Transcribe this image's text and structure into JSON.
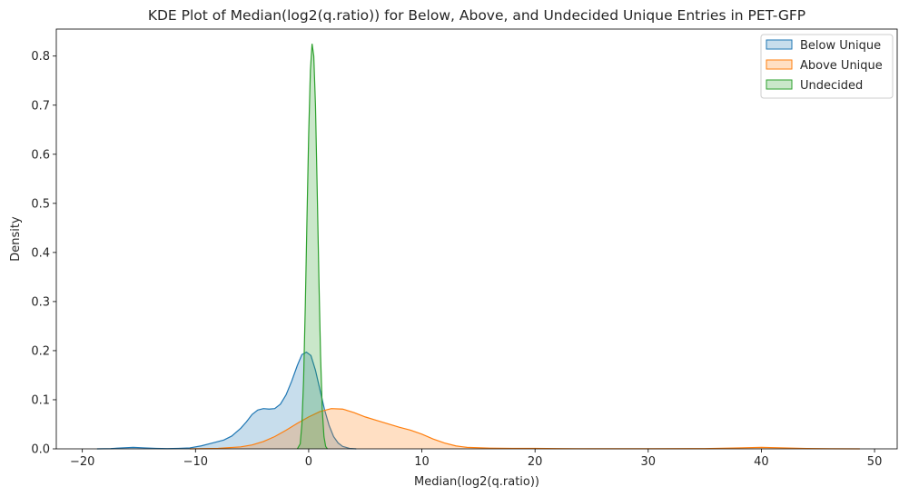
{
  "chart_data": {
    "type": "area",
    "title": "KDE Plot of Median(log2(q.ratio)) for Below, Above, and Undecided Unique Entries in PET-GFP",
    "xlabel": "Median(log2(q.ratio))",
    "ylabel": "Density",
    "xlim": [
      -22.3,
      52.0
    ],
    "ylim": [
      0,
      0.855
    ],
    "x_ticks": [
      -20,
      -10,
      0,
      10,
      20,
      30,
      40,
      50
    ],
    "y_ticks": [
      0.0,
      0.1,
      0.2,
      0.3,
      0.4,
      0.5,
      0.6,
      0.7,
      0.8
    ],
    "x_tick_labels": [
      "−20",
      "−10",
      "0",
      "10",
      "20",
      "30",
      "40",
      "50"
    ],
    "y_tick_labels": [
      "0.0",
      "0.1",
      "0.2",
      "0.3",
      "0.4",
      "0.5",
      "0.6",
      "0.7",
      "0.8"
    ],
    "grid": false,
    "legend_position": "top-right",
    "series": [
      {
        "name": "Below Unique",
        "color": "#1f77b4",
        "points": [
          [
            -18.7,
            0
          ],
          [
            -17.5,
            0.0005
          ],
          [
            -16.5,
            0.002
          ],
          [
            -15.5,
            0.003
          ],
          [
            -14.5,
            0.002
          ],
          [
            -13.5,
            0.001
          ],
          [
            -12.5,
            0.0005
          ],
          [
            -11.5,
            0.001
          ],
          [
            -10.5,
            0.002
          ],
          [
            -9.5,
            0.006
          ],
          [
            -8.5,
            0.012
          ],
          [
            -7.5,
            0.018
          ],
          [
            -6.8,
            0.026
          ],
          [
            -6.0,
            0.042
          ],
          [
            -5.5,
            0.055
          ],
          [
            -5.0,
            0.07
          ],
          [
            -4.5,
            0.079
          ],
          [
            -4.0,
            0.082
          ],
          [
            -3.5,
            0.081
          ],
          [
            -3.0,
            0.082
          ],
          [
            -2.5,
            0.091
          ],
          [
            -2.0,
            0.11
          ],
          [
            -1.5,
            0.138
          ],
          [
            -1.0,
            0.17
          ],
          [
            -0.6,
            0.192
          ],
          [
            -0.2,
            0.197
          ],
          [
            0.2,
            0.19
          ],
          [
            0.6,
            0.16
          ],
          [
            1.0,
            0.12
          ],
          [
            1.4,
            0.08
          ],
          [
            1.8,
            0.048
          ],
          [
            2.2,
            0.025
          ],
          [
            2.6,
            0.012
          ],
          [
            3.0,
            0.005
          ],
          [
            3.6,
            0.001
          ],
          [
            4.2,
            0
          ]
        ]
      },
      {
        "name": "Above Unique",
        "color": "#ff7f0e",
        "points": [
          [
            -10.5,
            0
          ],
          [
            -8.0,
            0.001
          ],
          [
            -6.0,
            0.004
          ],
          [
            -5.0,
            0.008
          ],
          [
            -4.0,
            0.015
          ],
          [
            -3.0,
            0.025
          ],
          [
            -2.0,
            0.038
          ],
          [
            -1.0,
            0.052
          ],
          [
            0.0,
            0.065
          ],
          [
            1.0,
            0.076
          ],
          [
            2.0,
            0.082
          ],
          [
            3.0,
            0.081
          ],
          [
            4.0,
            0.074
          ],
          [
            5.0,
            0.065
          ],
          [
            6.0,
            0.058
          ],
          [
            7.0,
            0.051
          ],
          [
            8.0,
            0.044
          ],
          [
            9.0,
            0.038
          ],
          [
            10.0,
            0.03
          ],
          [
            11.0,
            0.02
          ],
          [
            12.0,
            0.012
          ],
          [
            13.0,
            0.006
          ],
          [
            14.0,
            0.003
          ],
          [
            16.0,
            0.0015
          ],
          [
            18.0,
            0.001
          ],
          [
            20.0,
            0.001
          ],
          [
            22.0,
            0.0005
          ],
          [
            25.0,
            0.0003
          ],
          [
            30.0,
            0.0002
          ],
          [
            35.0,
            0.0005
          ],
          [
            38.0,
            0.002
          ],
          [
            40.0,
            0.003
          ],
          [
            42.0,
            0.002
          ],
          [
            44.0,
            0.0008
          ],
          [
            46.0,
            0.0003
          ],
          [
            48.7,
            0
          ]
        ]
      },
      {
        "name": "Undecided",
        "color": "#2ca02c",
        "points": [
          [
            -1.0,
            0
          ],
          [
            -0.75,
            0.01
          ],
          [
            -0.6,
            0.05
          ],
          [
            -0.45,
            0.14
          ],
          [
            -0.3,
            0.29
          ],
          [
            -0.15,
            0.47
          ],
          [
            0.0,
            0.64
          ],
          [
            0.15,
            0.77
          ],
          [
            0.3,
            0.825
          ],
          [
            0.45,
            0.8
          ],
          [
            0.6,
            0.7
          ],
          [
            0.75,
            0.53
          ],
          [
            0.9,
            0.35
          ],
          [
            1.05,
            0.19
          ],
          [
            1.2,
            0.08
          ],
          [
            1.35,
            0.025
          ],
          [
            1.5,
            0.005
          ],
          [
            1.65,
            0
          ]
        ]
      }
    ]
  }
}
